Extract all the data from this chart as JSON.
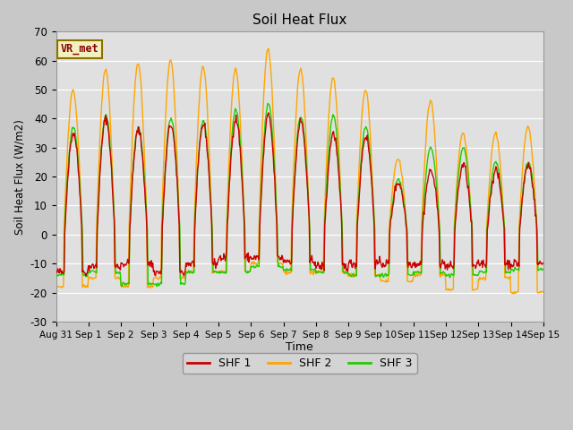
{
  "title": "Soil Heat Flux",
  "ylabel": "Soil Heat Flux (W/m2)",
  "xlabel": "Time",
  "ylim": [
    -30,
    70
  ],
  "fig_bg_color": "#c8c8c8",
  "plot_bg_color": "#e0e0e0",
  "annotation_text": "VR_met",
  "legend_labels": [
    "SHF 1",
    "SHF 2",
    "SHF 3"
  ],
  "shf1_color": "#cc0000",
  "shf2_color": "#ffa500",
  "shf3_color": "#22cc00",
  "line_width": 1.0,
  "xtick_labels": [
    "Aug 31",
    "Sep 1",
    "Sep 2",
    "Sep 3",
    "Sep 4",
    "Sep 5",
    "Sep 6",
    "Sep 7",
    "Sep 8",
    "Sep 9",
    "Sep 10",
    "Sep 11",
    "Sep 12",
    "Sep 13",
    "Sep 14",
    "Sep 15"
  ],
  "ytick_values": [
    -30,
    -20,
    -10,
    0,
    10,
    20,
    30,
    40,
    50,
    60,
    70
  ],
  "n_days": 15,
  "shf2_peaks": [
    50,
    57,
    59,
    60,
    58,
    57,
    64,
    57,
    54,
    50,
    26,
    46,
    35,
    35,
    37
  ],
  "shf3_peaks": [
    37,
    41,
    37,
    40,
    39,
    43,
    45,
    41,
    41,
    37,
    19,
    30,
    30,
    25,
    25
  ],
  "shf1_peaks": [
    35,
    40,
    36,
    38,
    38,
    40,
    41,
    39,
    35,
    34,
    18,
    22,
    24,
    22,
    24
  ],
  "shf2_night": [
    -18,
    -15,
    -18,
    -15,
    -13,
    -13,
    -10,
    -13,
    -13,
    -14,
    -16,
    -14,
    -19,
    -15,
    -20
  ],
  "shf3_night": [
    -14,
    -13,
    -17,
    -17,
    -13,
    -13,
    -11,
    -12,
    -13,
    -14,
    -14,
    -13,
    -14,
    -13,
    -12
  ],
  "shf1_night": [
    -13,
    -11,
    -10,
    -13,
    -10,
    -8,
    -8,
    -9,
    -11,
    -10,
    -10,
    -10,
    -11,
    -10,
    -10
  ]
}
